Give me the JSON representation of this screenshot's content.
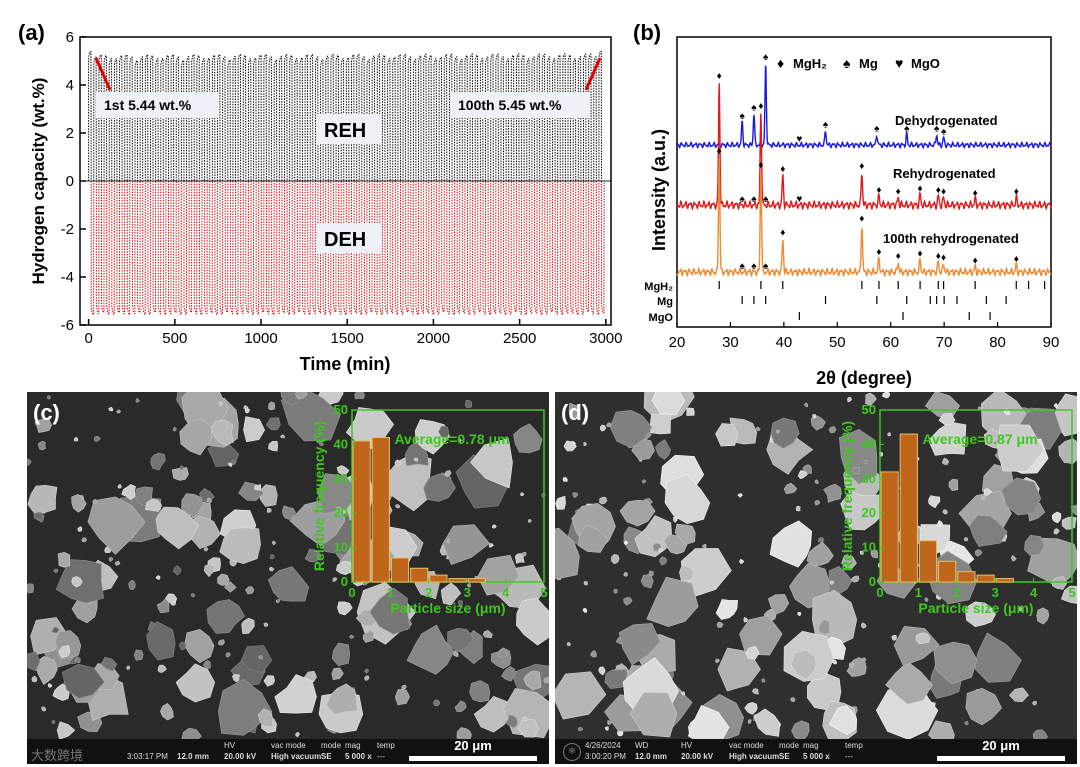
{
  "panel_a": {
    "label": "(a)",
    "chart_data": {
      "type": "line",
      "title": "",
      "xlabel": "Time (min)",
      "ylabel": "Hydrogen capacity (wt.%)",
      "xlim": [
        -50,
        3030
      ],
      "ylim": [
        -6,
        6
      ],
      "xticks": [
        0,
        500,
        1000,
        1500,
        2000,
        2500,
        3000
      ],
      "yticks": [
        -6,
        -4,
        -2,
        0,
        2,
        4,
        6
      ],
      "cycles": 100,
      "series": [
        {
          "name": "REH",
          "color": "#000000",
          "peak_min": 5.05,
          "peak_max": 5.45
        },
        {
          "name": "DEH",
          "color": "#e00000",
          "trough_min": -5.5,
          "trough_max": -5.7
        }
      ],
      "annotations": [
        {
          "text": "1st 5.44 wt.%"
        },
        {
          "text": "100th 5.45 wt.%"
        },
        {
          "text": "REH"
        },
        {
          "text": "DEH"
        }
      ]
    }
  },
  "panel_b": {
    "label": "(b)",
    "chart_data": {
      "type": "line",
      "xlabel": "2θ (degree)",
      "ylabel": "Intensity (a.u.)",
      "xlim": [
        20,
        90
      ],
      "xticks": [
        20,
        30,
        40,
        50,
        60,
        70,
        80,
        90
      ],
      "legend": [
        {
          "symbol": "♦",
          "name": "MgH₂"
        },
        {
          "symbol": "♠",
          "name": "Mg"
        },
        {
          "symbol": "♥",
          "name": "MgO"
        }
      ],
      "series": [
        {
          "name": "Dehydrogenated",
          "color": "#1a1adf",
          "peaks": [
            [
              32.2,
              0.22
            ],
            [
              34.4,
              0.3
            ],
            [
              36.6,
              0.78
            ],
            [
              47.8,
              0.14
            ],
            [
              57.4,
              0.1
            ],
            [
              63.0,
              0.1
            ],
            [
              68.6,
              0.1
            ],
            [
              69.9,
              0.07
            ]
          ],
          "markers": [
            {
              "x": 32.2,
              "s": "♠"
            },
            {
              "x": 34.4,
              "s": "♠"
            },
            {
              "x": 36.6,
              "s": "♠"
            },
            {
              "x": 42.9,
              "s": "♥"
            },
            {
              "x": 47.8,
              "s": "♠"
            },
            {
              "x": 57.4,
              "s": "♠"
            },
            {
              "x": 63.0,
              "s": "♠"
            },
            {
              "x": 68.6,
              "s": "♠"
            },
            {
              "x": 69.9,
              "s": "♠"
            }
          ]
        },
        {
          "name": "Rehydrogenated",
          "color": "#e01a1a",
          "peaks": [
            [
              27.9,
              0.82
            ],
            [
              35.7,
              0.62
            ],
            [
              39.8,
              0.2
            ],
            [
              54.6,
              0.22
            ],
            [
              57.8,
              0.06
            ],
            [
              61.4,
              0.05
            ],
            [
              65.5,
              0.07
            ],
            [
              68.9,
              0.06
            ],
            [
              69.9,
              0.05
            ],
            [
              75.8,
              0.04
            ],
            [
              83.5,
              0.05
            ]
          ],
          "markers": [
            {
              "x": 27.9,
              "s": "♦"
            },
            {
              "x": 32.2,
              "s": "♠"
            },
            {
              "x": 34.4,
              "s": "♠"
            },
            {
              "x": 35.7,
              "s": "♦"
            },
            {
              "x": 36.6,
              "s": "♠"
            },
            {
              "x": 39.8,
              "s": "♦"
            },
            {
              "x": 42.9,
              "s": "♥"
            },
            {
              "x": 54.6,
              "s": "♦"
            },
            {
              "x": 57.8,
              "s": "♦"
            },
            {
              "x": 61.4,
              "s": "♦"
            },
            {
              "x": 65.5,
              "s": "♦"
            },
            {
              "x": 68.9,
              "s": "♦"
            },
            {
              "x": 69.9,
              "s": "♦"
            },
            {
              "x": 75.8,
              "s": "♦"
            },
            {
              "x": 83.5,
              "s": "♦"
            }
          ]
        },
        {
          "name": "100th rehydrogenated",
          "color": "#f08a30",
          "peaks": [
            [
              27.9,
              0.82
            ],
            [
              35.7,
              0.72
            ],
            [
              39.8,
              0.24
            ],
            [
              54.6,
              0.34
            ],
            [
              57.8,
              0.1
            ],
            [
              61.4,
              0.07
            ],
            [
              65.5,
              0.09
            ],
            [
              68.9,
              0.07
            ],
            [
              69.9,
              0.06
            ],
            [
              75.8,
              0.04
            ],
            [
              83.5,
              0.05
            ]
          ],
          "markers": [
            {
              "x": 27.9,
              "s": "♦"
            },
            {
              "x": 32.2,
              "s": "♠"
            },
            {
              "x": 34.4,
              "s": "♠"
            },
            {
              "x": 35.7,
              "s": "♦"
            },
            {
              "x": 36.6,
              "s": "♠"
            },
            {
              "x": 39.8,
              "s": "♦"
            },
            {
              "x": 54.6,
              "s": "♦"
            },
            {
              "x": 57.8,
              "s": "♦"
            },
            {
              "x": 61.4,
              "s": "♦"
            },
            {
              "x": 65.5,
              "s": "♦"
            },
            {
              "x": 68.9,
              "s": "♦"
            },
            {
              "x": 69.9,
              "s": "♦"
            },
            {
              "x": 75.8,
              "s": "♦"
            },
            {
              "x": 83.5,
              "s": "♦"
            }
          ]
        }
      ],
      "references": [
        {
          "name": "MgH₂",
          "positions": [
            27.9,
            35.7,
            39.8,
            54.6,
            57.8,
            61.4,
            65.5,
            68.9,
            69.9,
            75.8,
            83.5,
            85.8,
            88.8
          ]
        },
        {
          "name": "Mg",
          "positions": [
            32.2,
            34.4,
            36.6,
            47.8,
            57.4,
            63.0,
            67.4,
            68.6,
            70.0,
            72.4,
            77.9,
            81.6
          ]
        },
        {
          "name": "MgO",
          "positions": [
            42.9,
            62.3,
            74.7,
            78.6
          ]
        }
      ]
    }
  },
  "panel_c": {
    "label": "(c)",
    "chart_data": {
      "type": "bar",
      "title": "Average=0.78 μm",
      "xlabel": "Particle size (μm)",
      "ylabel": "Relative frequency (%)",
      "xlim": [
        0,
        5
      ],
      "ylim": [
        0,
        50
      ],
      "xticks": [
        0,
        1,
        2,
        3,
        4,
        5
      ],
      "yticks": [
        0,
        10,
        20,
        30,
        40,
        50
      ],
      "bin_width": 0.5,
      "bin_starts": [
        0,
        0.5,
        1.0,
        1.5,
        2.0,
        2.5,
        3.0
      ],
      "values": [
        41,
        42,
        7,
        4,
        2,
        1,
        1
      ]
    },
    "footer": {
      "date": "3:03:17 PM",
      "wd": "12.0 mm",
      "hv_label": "HV",
      "hv": "20.00 kV",
      "vac_label": "vac mode",
      "vac": "High vacuum",
      "mode_label": "mode",
      "mode": "SE",
      "mag_label": "mag",
      "mag": "5 000 x",
      "temp_label": "temp",
      "temp": "---",
      "scale": "20 μm",
      "watermark": "大数跨境"
    }
  },
  "panel_d": {
    "label": "(d)",
    "chart_data": {
      "type": "bar",
      "title": "Average=0.87 μm",
      "xlabel": "Particle size (μm)",
      "ylabel": "Relative frequency (%)",
      "xlim": [
        0,
        5
      ],
      "ylim": [
        0,
        50
      ],
      "xticks": [
        0,
        1,
        2,
        3,
        4,
        5
      ],
      "yticks": [
        0,
        10,
        20,
        30,
        40,
        50
      ],
      "bin_width": 0.5,
      "bin_starts": [
        0,
        0.5,
        1.0,
        1.5,
        2.0,
        2.5,
        3.0
      ],
      "values": [
        32,
        43,
        12,
        6,
        3,
        2,
        1
      ]
    },
    "footer": {
      "date_label": "4/26/2024",
      "date": "3:00:20 PM",
      "wd_label": "WD",
      "wd": "12.0 mm",
      "hv_label": "HV",
      "hv": "20.00 kV",
      "vac_label": "vac mode",
      "vac": "High vacuum",
      "mode_label": "mode",
      "mode": "SE",
      "mag_label": "mag",
      "mag": "5 000 x",
      "temp_label": "temp",
      "temp": "---",
      "scale": "20 μm"
    }
  }
}
